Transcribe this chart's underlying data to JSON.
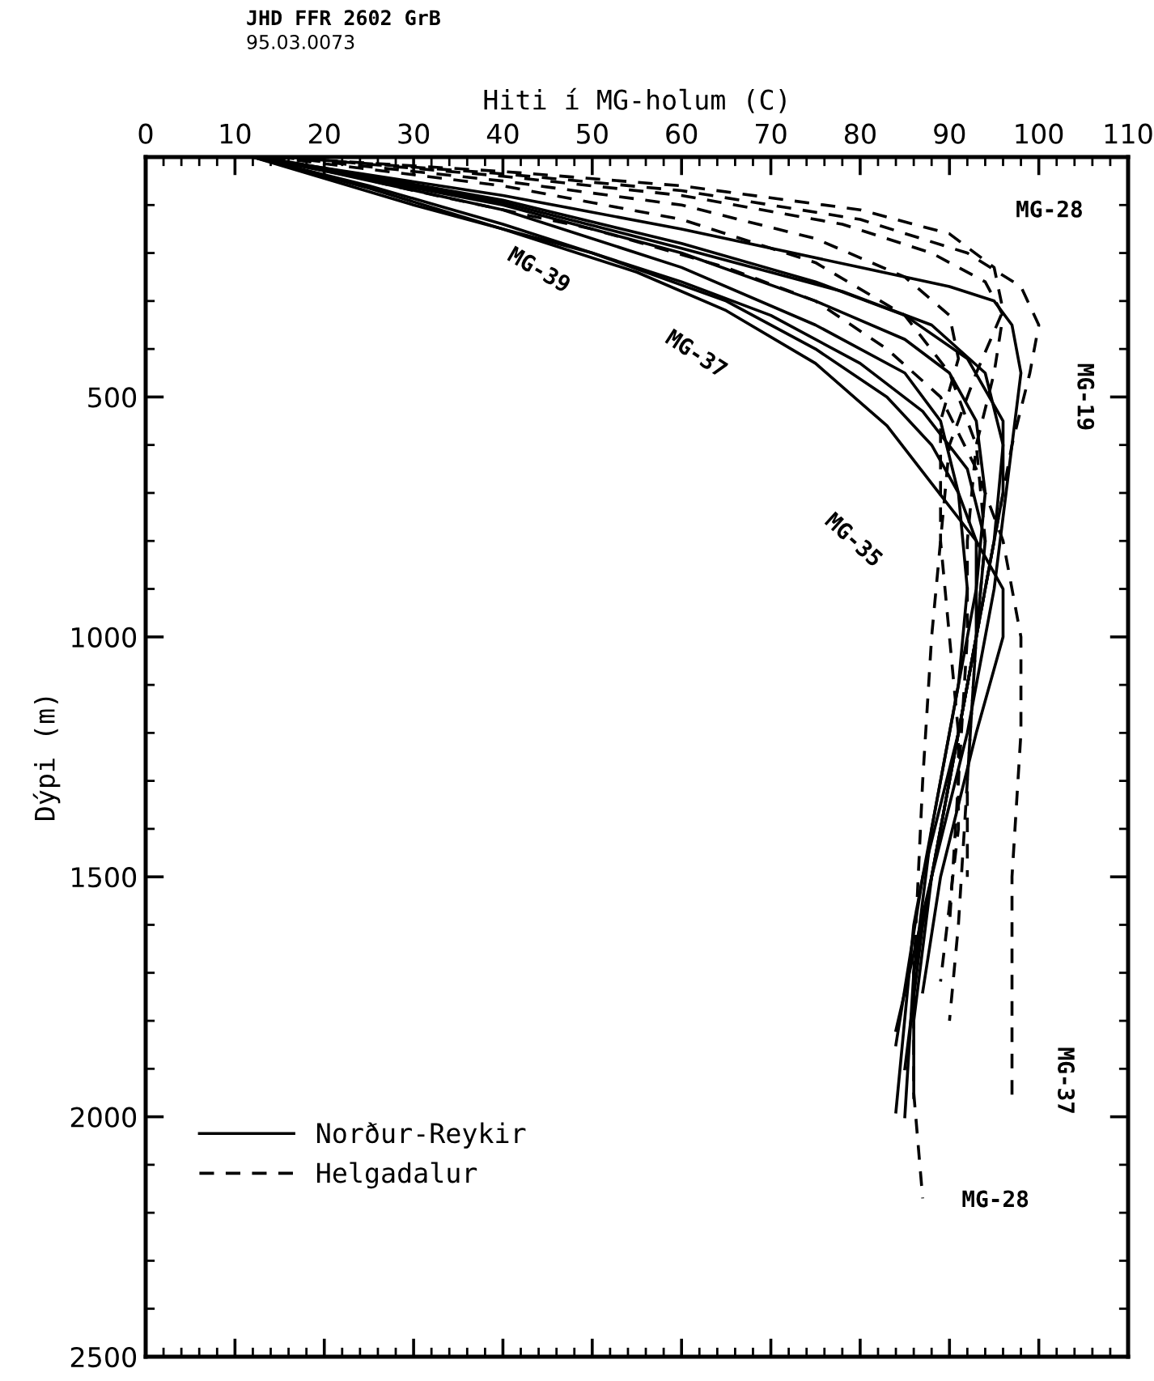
{
  "chart_data": {
    "type": "line",
    "xlabel": "Hiti í MG-holum (C)",
    "ylabel": "Dýpi (m)",
    "xlim": [
      0,
      110
    ],
    "xticks": [
      0,
      10,
      20,
      30,
      40,
      50,
      60,
      70,
      80,
      90,
      100,
      110
    ],
    "ylim": [
      2500,
      0
    ],
    "yticks": [
      {
        "value": 0,
        "label": null
      },
      500,
      1000,
      1500,
      2000,
      2500
    ],
    "grid": false,
    "legend": "bottom left",
    "marker": "none",
    "annotations": [
      "JHD FFR 2602 GrB",
      "95.03.0073",
      "MG-28",
      "MG-19",
      "MG-39",
      "MG-37",
      "MG-35",
      "MG-37",
      "MG-28"
    ],
    "series": [
      {
        "name": "Norður-Reykir",
        "color": "#000000",
        "line_style": "solid",
        "x": [
          12,
          40,
          60,
          80,
          90,
          95,
          97,
          98,
          97,
          95,
          92,
          88,
          84
        ],
        "values": [
          0,
          80,
          150,
          230,
          270,
          300,
          350,
          450,
          600,
          900,
          1200,
          1500,
          1820
        ]
      },
      {
        "color": "#000000",
        "line_style": "solid",
        "x": [
          13,
          40,
          60,
          75,
          85,
          92,
          96,
          96,
          94,
          91,
          87,
          84
        ],
        "values": [
          0,
          90,
          180,
          260,
          330,
          420,
          550,
          700,
          900,
          1200,
          1500,
          1850
        ]
      },
      {
        "color": "#000000",
        "line_style": "solid",
        "x": [
          12,
          40,
          60,
          75,
          85,
          90,
          93,
          94,
          93,
          90,
          86,
          84
        ],
        "values": [
          0,
          100,
          200,
          300,
          380,
          450,
          550,
          700,
          900,
          1200,
          1600,
          1990
        ]
      },
      {
        "color": "#000000",
        "line_style": "solid",
        "x": [
          13,
          40,
          60,
          75,
          85,
          89,
          91,
          92,
          91,
          88,
          86,
          85
        ],
        "values": [
          0,
          110,
          230,
          350,
          450,
          550,
          700,
          900,
          1100,
          1400,
          1700,
          2000
        ]
      },
      {
        "color": "#000000",
        "line_style": "solid",
        "x": [
          12,
          30,
          50,
          65,
          75,
          83,
          88,
          91,
          93,
          93,
          91,
          88,
          86
        ],
        "values": [
          0,
          100,
          200,
          300,
          400,
          500,
          600,
          700,
          800,
          1000,
          1200,
          1500,
          1800
        ]
      },
      {
        "color": "#000000",
        "line_style": "solid",
        "x": [
          12,
          25,
          40,
          50,
          60,
          70,
          80,
          87,
          92,
          94,
          93,
          90,
          87,
          85
        ],
        "values": [
          0,
          60,
          140,
          200,
          260,
          330,
          430,
          530,
          650,
          800,
          1000,
          1300,
          1600,
          1900
        ]
      },
      {
        "color": "#000000",
        "line_style": "solid",
        "x": [
          12,
          25,
          40,
          55,
          65,
          75,
          83,
          88,
          93,
          96,
          96,
          93,
          89,
          87
        ],
        "values": [
          0,
          65,
          150,
          240,
          320,
          430,
          560,
          680,
          800,
          900,
          1000,
          1200,
          1500,
          1740
        ]
      },
      {
        "color": "#000000",
        "line_style": "solid",
        "x": [
          12,
          40,
          60,
          78,
          88,
          94,
          96,
          95,
          93,
          90,
          86,
          86
        ],
        "values": [
          0,
          95,
          190,
          280,
          350,
          450,
          600,
          800,
          1000,
          1300,
          1700,
          1960
        ]
      },
      {
        "name": "Helgadalur",
        "color": "#000000",
        "line_style": "dashed",
        "x": [
          14,
          40,
          60,
          80,
          90,
          95,
          96,
          93,
          90,
          89,
          88,
          87,
          86,
          86,
          87
        ],
        "values": [
          0,
          30,
          60,
          110,
          160,
          230,
          320,
          450,
          600,
          800,
          1000,
          1300,
          1700,
          1950,
          2170
        ]
      },
      {
        "color": "#000000",
        "line_style": "dashed",
        "x": [
          15,
          40,
          60,
          80,
          92,
          98,
          100,
          99,
          97,
          95,
          93,
          92,
          91,
          90
        ],
        "values": [
          0,
          35,
          70,
          130,
          200,
          270,
          350,
          450,
          600,
          800,
          1000,
          1300,
          1600,
          1800
        ]
      },
      {
        "color": "#000000",
        "line_style": "dashed",
        "x": [
          14,
          30,
          50,
          65,
          75,
          83,
          89,
          93,
          96,
          98,
          98,
          97,
          97,
          97
        ],
        "values": [
          0,
          70,
          150,
          230,
          300,
          400,
          500,
          650,
          800,
          1000,
          1200,
          1500,
          1800,
          1960
        ]
      },
      {
        "color": "#000000",
        "line_style": "dashed",
        "x": [
          15,
          40,
          60,
          75,
          85,
          90,
          91,
          89,
          89,
          90,
          91,
          91,
          89
        ],
        "values": [
          0,
          50,
          100,
          170,
          250,
          330,
          420,
          550,
          800,
          1000,
          1200,
          1400,
          1718
        ]
      },
      {
        "color": "#000000",
        "line_style": "dashed",
        "x": [
          16,
          40,
          60,
          78,
          88,
          94,
          96,
          95,
          93,
          92,
          92,
          91,
          90
        ],
        "values": [
          0,
          40,
          80,
          140,
          200,
          260,
          330,
          450,
          600,
          800,
          1000,
          1300,
          1600
        ]
      },
      {
        "color": "#000000",
        "line_style": "dashed",
        "x": [
          14,
          40,
          60,
          75,
          85,
          90,
          93,
          94,
          93,
          92,
          92
        ],
        "values": [
          0,
          60,
          130,
          220,
          330,
          450,
          600,
          800,
          1000,
          1300,
          1500
        ]
      }
    ]
  }
}
